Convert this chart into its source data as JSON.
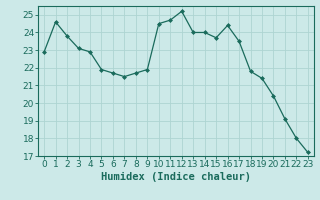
{
  "x": [
    0,
    1,
    2,
    3,
    4,
    5,
    6,
    7,
    8,
    9,
    10,
    11,
    12,
    13,
    14,
    15,
    16,
    17,
    18,
    19,
    20,
    21,
    22,
    23
  ],
  "y": [
    22.9,
    24.6,
    23.8,
    23.1,
    22.9,
    21.9,
    21.7,
    21.5,
    21.7,
    21.9,
    24.5,
    24.7,
    25.2,
    24.0,
    24.0,
    23.7,
    24.4,
    23.5,
    21.8,
    21.4,
    20.4,
    19.1,
    18.0,
    17.2
  ],
  "line_color": "#1a6b5c",
  "marker": "D",
  "marker_size": 2,
  "bg_color": "#cce9e8",
  "grid_color": "#aed4d2",
  "tick_color": "#1a6b5c",
  "xlabel": "Humidex (Indice chaleur)",
  "ylabel": "",
  "ylim": [
    17,
    25.5
  ],
  "yticks": [
    17,
    18,
    19,
    20,
    21,
    22,
    23,
    24,
    25
  ],
  "xlim": [
    -0.5,
    23.5
  ],
  "xlabel_color": "#1a6b5c",
  "label_fontsize": 7.5,
  "tick_fontsize": 6.5
}
